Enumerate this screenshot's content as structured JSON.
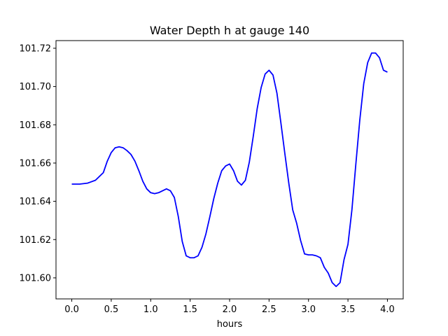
{
  "chart_data": {
    "type": "line",
    "title": "Water Depth h at gauge 140",
    "xlabel": "hours",
    "ylabel": "",
    "xlim": [
      -0.2,
      4.2
    ],
    "ylim": [
      101.589,
      101.724
    ],
    "xticks": [
      0.0,
      0.5,
      1.0,
      1.5,
      2.0,
      2.5,
      3.0,
      3.5,
      4.0
    ],
    "xtick_labels": [
      "0.0",
      "0.5",
      "1.0",
      "1.5",
      "2.0",
      "2.5",
      "3.0",
      "3.5",
      "4.0"
    ],
    "yticks": [
      101.6,
      101.62,
      101.64,
      101.66,
      101.68,
      101.7,
      101.72
    ],
    "ytick_labels": [
      "101.60",
      "101.62",
      "101.64",
      "101.66",
      "101.68",
      "101.70",
      "101.72"
    ],
    "grid": false,
    "series": [
      {
        "color": "#0000ff",
        "x": [
          0.0,
          0.1,
          0.2,
          0.3,
          0.4,
          0.45,
          0.5,
          0.55,
          0.6,
          0.65,
          0.7,
          0.75,
          0.8,
          0.85,
          0.9,
          0.95,
          1.0,
          1.05,
          1.1,
          1.15,
          1.2,
          1.25,
          1.3,
          1.35,
          1.4,
          1.45,
          1.5,
          1.55,
          1.6,
          1.65,
          1.7,
          1.75,
          1.8,
          1.85,
          1.9,
          1.95,
          2.0,
          2.05,
          2.1,
          2.15,
          2.2,
          2.25,
          2.3,
          2.35,
          2.4,
          2.45,
          2.5,
          2.55,
          2.6,
          2.65,
          2.7,
          2.75,
          2.8,
          2.85,
          2.9,
          2.95,
          3.0,
          3.05,
          3.1,
          3.15,
          3.2,
          3.25,
          3.3,
          3.35,
          3.4,
          3.45,
          3.5,
          3.55,
          3.6,
          3.65,
          3.7,
          3.75,
          3.8,
          3.85,
          3.9,
          3.95,
          4.0
        ],
        "y": [
          101.649,
          101.649,
          101.6495,
          101.651,
          101.655,
          101.661,
          101.6655,
          101.668,
          101.6685,
          101.668,
          101.6665,
          101.6645,
          101.661,
          101.656,
          101.6505,
          101.6465,
          101.6445,
          101.644,
          101.6445,
          101.6455,
          101.6465,
          101.6455,
          101.642,
          101.632,
          101.619,
          101.6115,
          101.6105,
          101.6105,
          101.6115,
          101.616,
          101.623,
          101.632,
          101.6415,
          101.6495,
          101.656,
          101.6585,
          101.6595,
          101.656,
          101.6505,
          101.6485,
          101.651,
          101.6605,
          101.674,
          101.6885,
          101.6995,
          101.7065,
          101.7085,
          101.706,
          101.6965,
          101.681,
          101.665,
          101.6495,
          101.6355,
          101.6285,
          101.6195,
          101.6125,
          101.612,
          101.612,
          101.6115,
          101.6105,
          101.6055,
          101.6025,
          101.5975,
          101.5955,
          101.5975,
          101.6095,
          101.6175,
          101.6355,
          101.6595,
          101.6825,
          101.7015,
          101.7125,
          101.7175,
          101.7175,
          101.715,
          101.7085,
          101.7075
        ]
      }
    ]
  }
}
